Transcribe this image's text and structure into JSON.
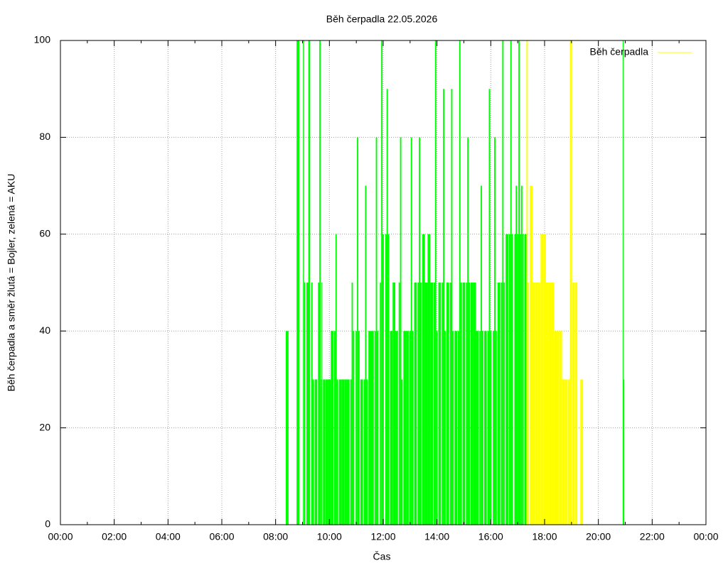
{
  "chart_data": {
    "type": "impulses",
    "title": "Běh čerpadla 22.05.2026",
    "x_label": "Čas",
    "y_label": "Běh čerpadla a směr žlutá = Bojler, zelená = AKU",
    "xlim": [
      0,
      24
    ],
    "ylim": [
      0,
      100
    ],
    "xticks": [
      {
        "value": 0,
        "label": "00:00"
      },
      {
        "value": 2,
        "label": "02:00"
      },
      {
        "value": 4,
        "label": "04:00"
      },
      {
        "value": 6,
        "label": "06:00"
      },
      {
        "value": 8,
        "label": "08:00"
      },
      {
        "value": 10,
        "label": "10:00"
      },
      {
        "value": 12,
        "label": "12:00"
      },
      {
        "value": 14,
        "label": "14:00"
      },
      {
        "value": 16,
        "label": "16:00"
      },
      {
        "value": 18,
        "label": "18:00"
      },
      {
        "value": 20,
        "label": "20:00"
      },
      {
        "value": 22,
        "label": "22:00"
      },
      {
        "value": 24,
        "label": "00:00"
      }
    ],
    "xminorticks": [
      1,
      3,
      5,
      7,
      9,
      11,
      13,
      15,
      17,
      19,
      21,
      23
    ],
    "yticks": [
      0,
      20,
      40,
      60,
      80,
      100
    ],
    "grid": true,
    "legend": "top right",
    "series": [
      {
        "color": "#00ff00",
        "x": [
          8.43,
          8.83,
          9.04,
          9.08,
          9.18,
          9.25,
          9.35,
          9.4,
          9.5,
          9.6,
          9.65,
          9.7,
          9.72,
          9.8,
          9.9,
          10.0,
          10.1,
          10.2,
          10.25,
          10.3,
          10.4,
          10.5,
          10.6,
          10.7,
          10.8,
          10.85,
          10.9,
          11.0,
          11.05,
          11.1,
          11.2,
          11.3,
          11.35,
          11.4,
          11.5,
          11.6,
          11.7,
          11.75,
          11.8,
          11.9,
          11.95,
          12.0,
          12.1,
          12.15,
          12.2,
          12.3,
          12.4,
          12.5,
          12.6,
          12.65,
          12.7,
          12.8,
          12.9,
          13.0,
          13.05,
          13.1,
          13.2,
          13.3,
          13.35,
          13.4,
          13.5,
          13.6,
          13.7,
          13.8,
          13.9,
          13.95,
          14.0,
          14.1,
          14.2,
          14.25,
          14.3,
          14.4,
          14.5,
          14.55,
          14.6,
          14.7,
          14.8,
          14.85,
          14.9,
          15.0,
          15.1,
          15.15,
          15.2,
          15.3,
          15.4,
          15.5,
          15.6,
          15.65,
          15.7,
          15.8,
          15.9,
          15.95,
          16.0,
          16.1,
          16.15,
          16.2,
          16.3,
          16.4,
          16.45,
          16.5,
          16.6,
          16.7,
          16.75,
          16.8,
          16.9,
          16.95,
          17.0,
          17.05,
          17.1,
          17.15,
          17.2,
          17.3,
          20.92,
          20.95
        ],
        "values": [
          40,
          100,
          100,
          50,
          50,
          100,
          50,
          30,
          30,
          50,
          100,
          30,
          50,
          30,
          30,
          30,
          40,
          40,
          60,
          30,
          30,
          30,
          30,
          30,
          30,
          50,
          40,
          40,
          80,
          40,
          30,
          30,
          70,
          30,
          40,
          40,
          40,
          80,
          40,
          50,
          100,
          60,
          60,
          90,
          60,
          40,
          50,
          40,
          50,
          80,
          30,
          40,
          40,
          40,
          80,
          40,
          50,
          50,
          80,
          50,
          60,
          50,
          60,
          50,
          50,
          100,
          40,
          50,
          50,
          90,
          40,
          50,
          50,
          90,
          40,
          40,
          40,
          100,
          50,
          50,
          50,
          80,
          50,
          50,
          50,
          40,
          40,
          70,
          40,
          40,
          40,
          90,
          40,
          40,
          80,
          40,
          50,
          50,
          100,
          50,
          60,
          60,
          100,
          60,
          60,
          70,
          60,
          100,
          60,
          70,
          60,
          60,
          100,
          30
        ]
      },
      {
        "name": "Běh čerpadla",
        "color": "#ffff00",
        "x": [
          17.35,
          17.4,
          17.5,
          17.6,
          17.7,
          17.8,
          17.9,
          18.0,
          18.1,
          18.2,
          18.3,
          18.4,
          18.5,
          18.6,
          18.7,
          18.8,
          18.9,
          18.98,
          19.07,
          19.17,
          19.38
        ],
        "values": [
          100,
          50,
          70,
          50,
          50,
          50,
          60,
          60,
          50,
          50,
          50,
          40,
          40,
          40,
          30,
          30,
          30,
          100,
          50,
          50,
          30
        ]
      }
    ]
  }
}
